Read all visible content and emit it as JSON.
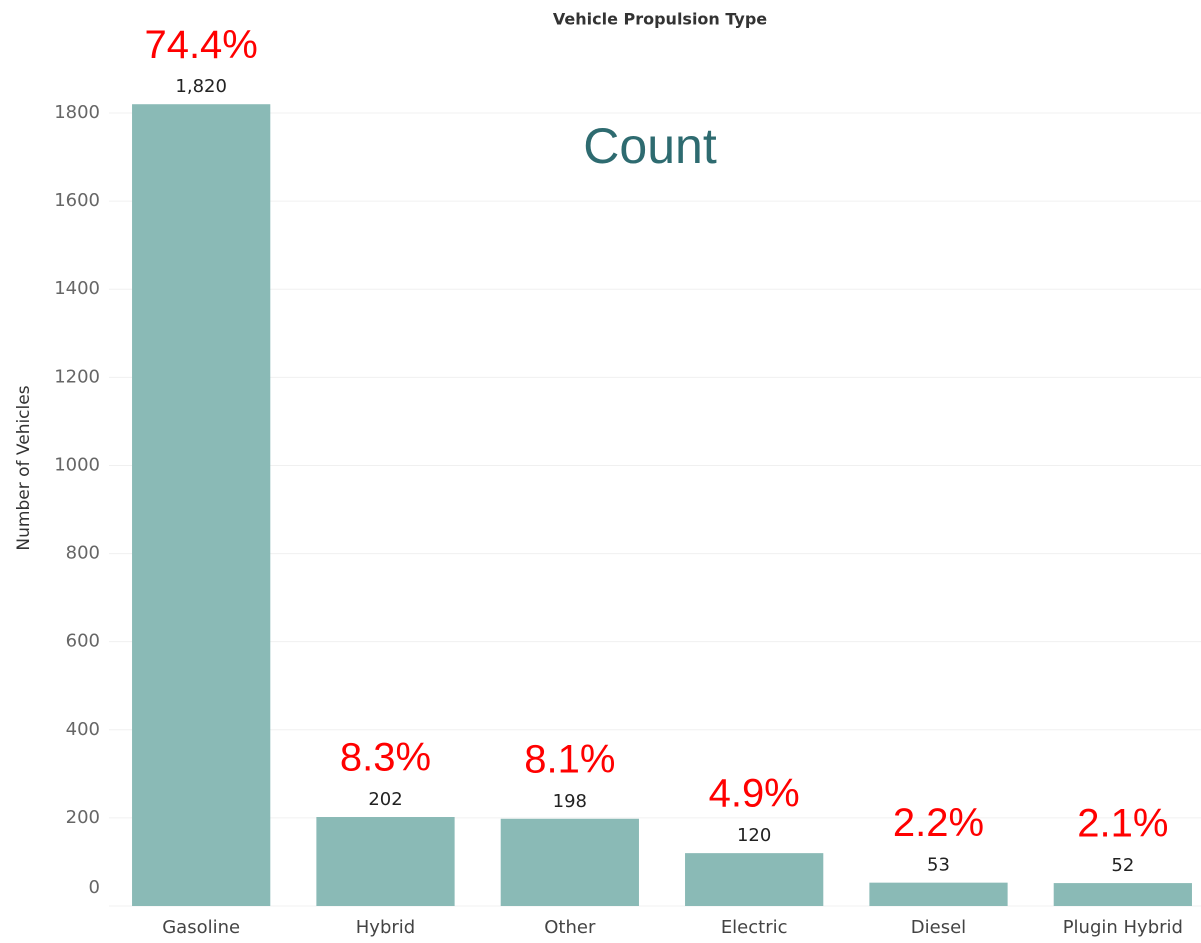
{
  "chart_data": {
    "type": "bar",
    "title": "Vehicle Propulsion Type",
    "subtitle": "Count",
    "y_label": "Number of Vehicles",
    "categories": [
      "Gasoline",
      "Hybrid",
      "Other",
      "Electric",
      "Diesel",
      "Plugin Hybrid"
    ],
    "values": [
      1820,
      202,
      198,
      120,
      53,
      52
    ],
    "value_labels": [
      "1,820",
      "202",
      "198",
      "120",
      "53",
      "52"
    ],
    "annotations": [
      "74.4%",
      "8.3%",
      "8.1%",
      "4.9%",
      "2.2%",
      "2.1%"
    ],
    "color": "#8abab6",
    "ylim": [
      0,
      1850
    ],
    "yticks": [
      0,
      200,
      400,
      600,
      800,
      1000,
      1200,
      1400,
      1600,
      1800
    ],
    "grid": true
  }
}
